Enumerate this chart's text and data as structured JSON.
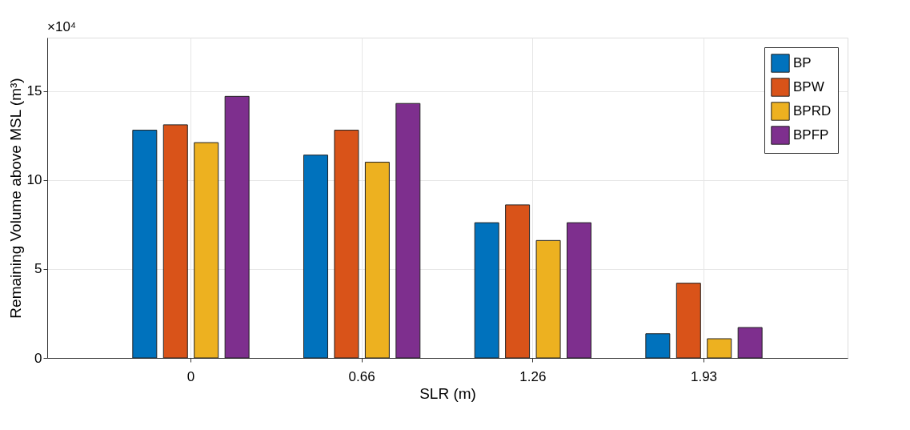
{
  "chart_data": {
    "type": "bar",
    "xlabel": "SLR (m)",
    "ylabel": "Remaining Volume above MSL (m³)",
    "annotations": [
      "×10⁴"
    ],
    "categories": [
      "0",
      "0.66",
      "1.26",
      "1.93"
    ],
    "series": [
      {
        "name": "BP",
        "color": "#0072bd",
        "values": [
          12.8,
          11.4,
          7.6,
          1.36
        ]
      },
      {
        "name": "BPW",
        "color": "#d95319",
        "values": [
          13.1,
          12.8,
          8.6,
          4.2
        ]
      },
      {
        "name": "BPRD",
        "color": "#edb120",
        "values": [
          12.1,
          11.0,
          6.6,
          1.08
        ]
      },
      {
        "name": "BPFP",
        "color": "#7e2f8e",
        "values": [
          14.7,
          14.3,
          7.6,
          1.71
        ]
      }
    ],
    "ylim": [
      0,
      18
    ],
    "yticks": [
      0,
      5,
      10,
      15
    ],
    "grid": true,
    "legend": "top right"
  }
}
